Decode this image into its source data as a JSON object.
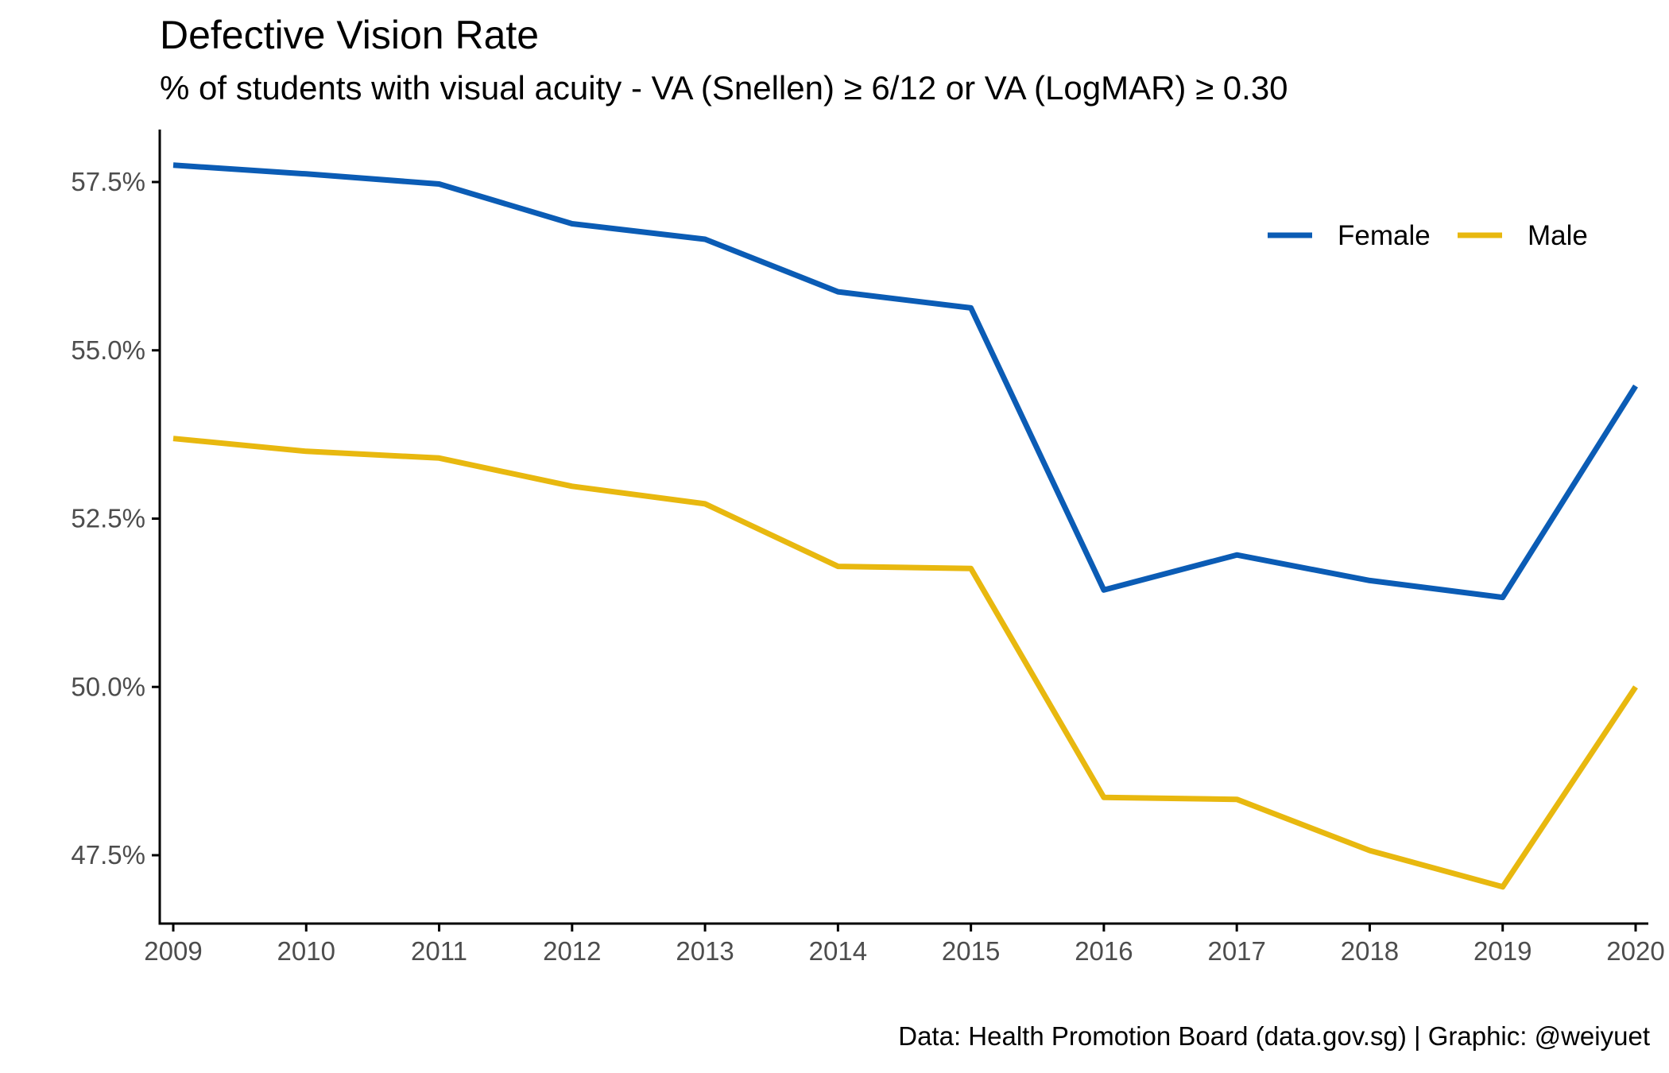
{
  "title": "Defective Vision Rate",
  "subtitle": "% of students with visual acuity - VA (Snellen) ≥ 6/12 or VA (LogMAR) ≥ 0.30",
  "caption": "Data: Health Promotion Board (data.gov.sg) | Graphic: @weiyuet",
  "colors": {
    "female": "#0b5cb5",
    "male": "#e8b80f",
    "axis": "#000000",
    "tick_text": "#4d4d4d"
  },
  "chart_data": {
    "type": "line",
    "title": "Defective Vision Rate",
    "subtitle": "% of students with visual acuity - VA (Snellen) ≥ 6/12 or VA (LogMAR) ≥ 0.30",
    "xlabel": "",
    "ylabel": "",
    "x": [
      2009,
      2010,
      2011,
      2012,
      2013,
      2014,
      2015,
      2016,
      2017,
      2018,
      2019,
      2020
    ],
    "x_tick_labels": [
      "2009",
      "2010",
      "2011",
      "2012",
      "2013",
      "2014",
      "2015",
      "2016",
      "2017",
      "2018",
      "2019",
      "2020"
    ],
    "y_ticks": [
      47.5,
      50.0,
      52.5,
      55.0,
      57.5
    ],
    "y_tick_labels": [
      "47.5%",
      "50.0%",
      "52.5%",
      "55.0%",
      "57.5%"
    ],
    "xlim": [
      2009,
      2020
    ],
    "ylim": [
      46.5,
      58.3
    ],
    "grid": false,
    "legend_position": "top-right",
    "series": [
      {
        "name": "Female",
        "color": "#0b5cb5",
        "values": [
          57.75,
          57.62,
          57.47,
          56.88,
          56.65,
          55.87,
          55.63,
          51.44,
          51.96,
          51.58,
          51.33,
          54.47
        ]
      },
      {
        "name": "Male",
        "color": "#e8b80f",
        "values": [
          53.69,
          53.5,
          53.4,
          52.98,
          52.72,
          51.79,
          51.76,
          48.36,
          48.33,
          47.57,
          47.03,
          50.0
        ]
      }
    ]
  }
}
